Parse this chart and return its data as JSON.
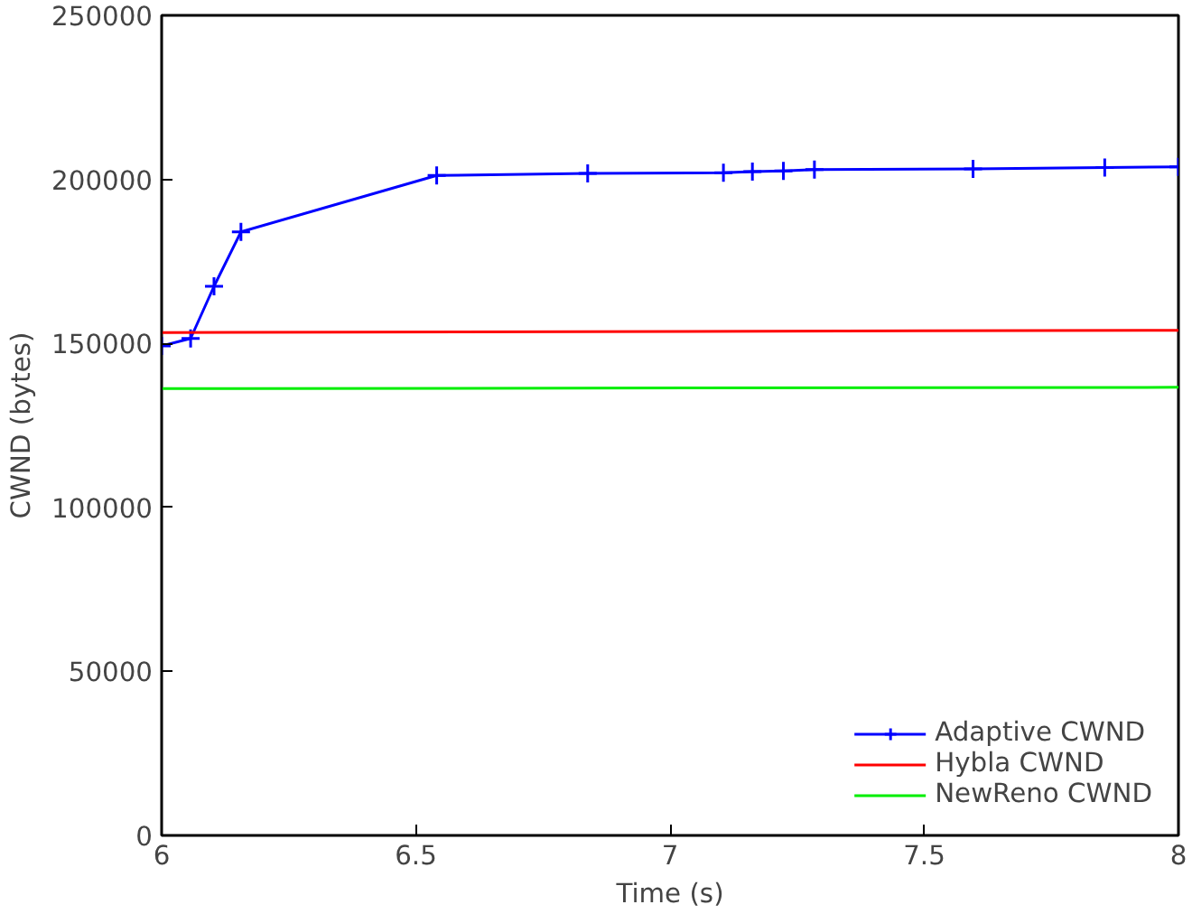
{
  "chart_data": {
    "type": "line",
    "xlabel": "Time (s)",
    "ylabel": "CWND (bytes)",
    "xlim": [
      6,
      8
    ],
    "ylim": [
      0,
      250000
    ],
    "xticks": [
      6,
      6.5,
      7,
      7.5,
      8
    ],
    "yticks": [
      0,
      50000,
      100000,
      150000,
      200000,
      250000
    ],
    "grid": false,
    "legend": "bottom right",
    "line_style": "solid",
    "series": [
      {
        "name": "Adaptive CWND",
        "color": "#0000ff",
        "marker": "cross",
        "x": [
          6,
          6.057,
          6.103,
          6.156,
          6.541,
          6.838,
          7.105,
          7.162,
          7.223,
          7.284,
          7.596,
          7.855,
          8
        ],
        "values": [
          149200,
          151500,
          167400,
          184000,
          201200,
          201800,
          202000,
          202400,
          202600,
          203000,
          203200,
          203600,
          203800
        ]
      },
      {
        "name": "Hybla CWND",
        "color": "#ff0000",
        "marker": "none",
        "x": [
          6,
          8
        ],
        "values": [
          153300,
          154000
        ]
      },
      {
        "name": "NewReno CWND",
        "color": "#00ee00",
        "marker": "none",
        "x": [
          6,
          8
        ],
        "values": [
          136200,
          136600
        ]
      }
    ]
  }
}
